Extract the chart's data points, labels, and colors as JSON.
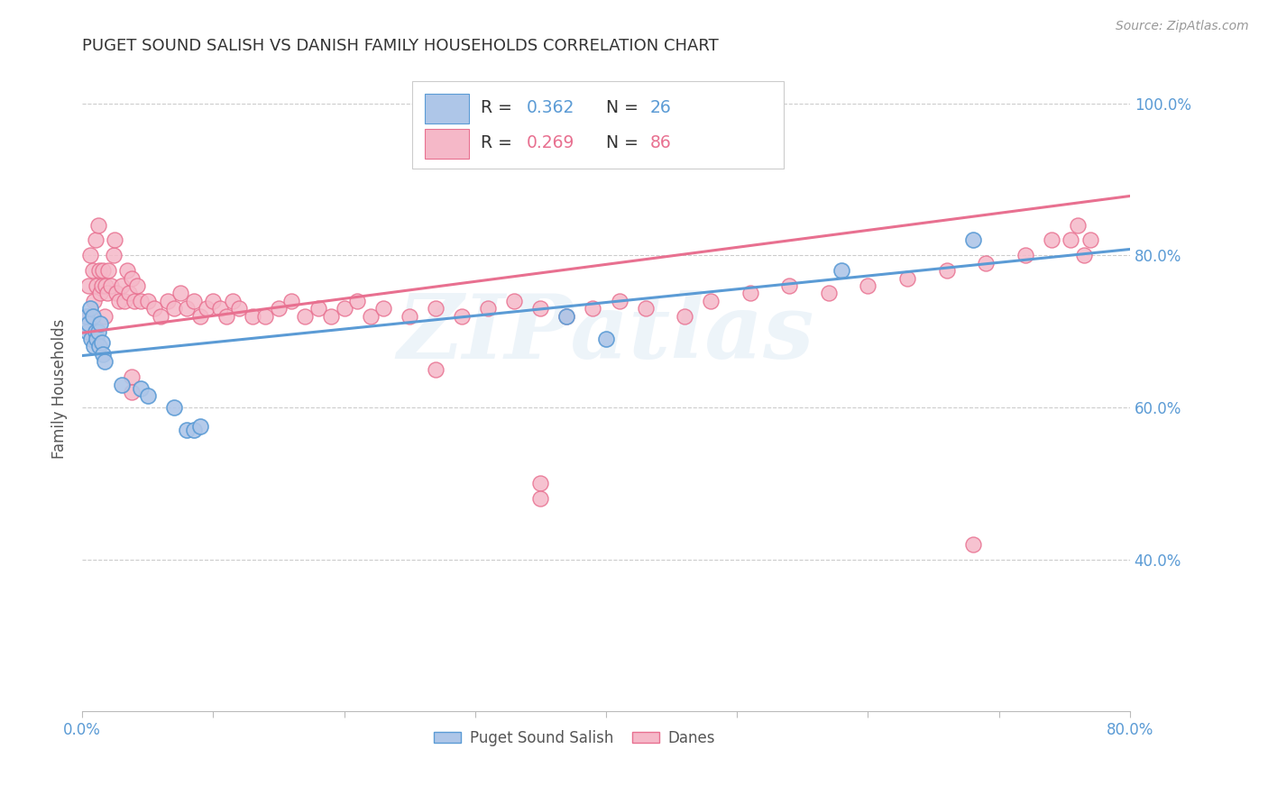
{
  "title": "PUGET SOUND SALISH VS DANISH FAMILY HOUSEHOLDS CORRELATION CHART",
  "source": "Source: ZipAtlas.com",
  "ylabel": "Family Households",
  "blue_R": 0.362,
  "blue_N": 26,
  "pink_R": 0.269,
  "pink_N": 86,
  "blue_color": "#aec6e8",
  "pink_color": "#f5b8c8",
  "blue_edge_color": "#5b9bd5",
  "pink_edge_color": "#e87090",
  "blue_line_color": "#5b9bd5",
  "pink_line_color": "#e87090",
  "legend_blue_label": "Puget Sound Salish",
  "legend_pink_label": "Danes",
  "watermark": "ZIPatlas",
  "xlim": [
    0.0,
    0.8
  ],
  "ylim": [
    0.2,
    1.05
  ],
  "blue_line_x": [
    0.0,
    0.8
  ],
  "blue_line_y": [
    0.668,
    0.808
  ],
  "pink_line_x": [
    0.0,
    0.8
  ],
  "pink_line_y": [
    0.698,
    0.878
  ],
  "blue_x": [
    0.003,
    0.004,
    0.005,
    0.006,
    0.007,
    0.008,
    0.009,
    0.01,
    0.011,
    0.012,
    0.013,
    0.014,
    0.015,
    0.016,
    0.017,
    0.03,
    0.045,
    0.05,
    0.07,
    0.08,
    0.085,
    0.09,
    0.37,
    0.4,
    0.58,
    0.68
  ],
  "blue_y": [
    0.72,
    0.7,
    0.71,
    0.73,
    0.69,
    0.72,
    0.68,
    0.7,
    0.69,
    0.7,
    0.68,
    0.71,
    0.685,
    0.67,
    0.66,
    0.63,
    0.625,
    0.615,
    0.6,
    0.57,
    0.57,
    0.575,
    0.72,
    0.69,
    0.78,
    0.82
  ],
  "pink_x": [
    0.003,
    0.005,
    0.006,
    0.008,
    0.009,
    0.01,
    0.011,
    0.012,
    0.013,
    0.014,
    0.015,
    0.016,
    0.017,
    0.018,
    0.019,
    0.02,
    0.022,
    0.024,
    0.025,
    0.026,
    0.028,
    0.03,
    0.032,
    0.034,
    0.036,
    0.038,
    0.04,
    0.042,
    0.045,
    0.05,
    0.055,
    0.06,
    0.065,
    0.07,
    0.075,
    0.08,
    0.085,
    0.09,
    0.095,
    0.1,
    0.105,
    0.11,
    0.115,
    0.12,
    0.13,
    0.14,
    0.15,
    0.16,
    0.17,
    0.18,
    0.19,
    0.2,
    0.21,
    0.22,
    0.23,
    0.25,
    0.27,
    0.29,
    0.31,
    0.33,
    0.35,
    0.37,
    0.39,
    0.41,
    0.43,
    0.46,
    0.48,
    0.51,
    0.54,
    0.57,
    0.6,
    0.63,
    0.66,
    0.69,
    0.72,
    0.74,
    0.755,
    0.76,
    0.765,
    0.77,
    0.038,
    0.038,
    0.27,
    0.35,
    0.35,
    0.68
  ],
  "pink_y": [
    0.72,
    0.76,
    0.8,
    0.78,
    0.74,
    0.82,
    0.76,
    0.84,
    0.78,
    0.75,
    0.76,
    0.78,
    0.72,
    0.76,
    0.75,
    0.78,
    0.76,
    0.8,
    0.82,
    0.75,
    0.74,
    0.76,
    0.74,
    0.78,
    0.75,
    0.77,
    0.74,
    0.76,
    0.74,
    0.74,
    0.73,
    0.72,
    0.74,
    0.73,
    0.75,
    0.73,
    0.74,
    0.72,
    0.73,
    0.74,
    0.73,
    0.72,
    0.74,
    0.73,
    0.72,
    0.72,
    0.73,
    0.74,
    0.72,
    0.73,
    0.72,
    0.73,
    0.74,
    0.72,
    0.73,
    0.72,
    0.73,
    0.72,
    0.73,
    0.74,
    0.73,
    0.72,
    0.73,
    0.74,
    0.73,
    0.72,
    0.74,
    0.75,
    0.76,
    0.75,
    0.76,
    0.77,
    0.78,
    0.79,
    0.8,
    0.82,
    0.82,
    0.84,
    0.8,
    0.82,
    0.64,
    0.62,
    0.65,
    0.5,
    0.48,
    0.42
  ]
}
